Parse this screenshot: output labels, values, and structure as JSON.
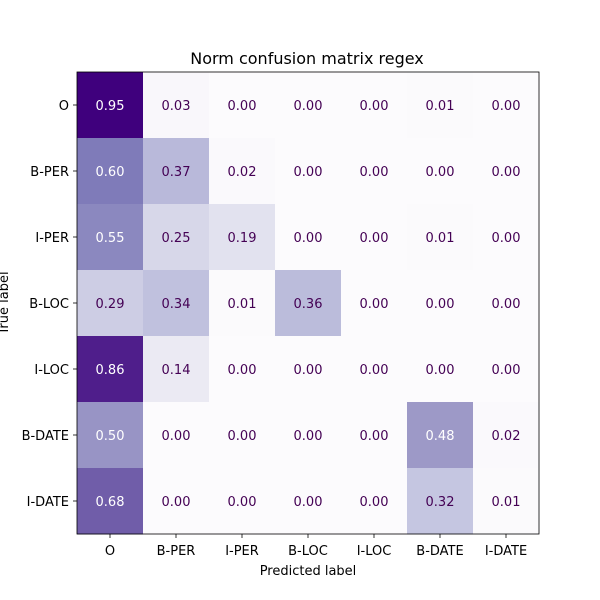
{
  "chart_data": {
    "type": "heatmap",
    "title": "Norm confusion matrix regex",
    "xlabel": "Predicted label",
    "ylabel": "True label",
    "x_categories": [
      "O",
      "B-PER",
      "I-PER",
      "B-LOC",
      "I-LOC",
      "B-DATE",
      "I-DATE"
    ],
    "y_categories": [
      "O",
      "B-PER",
      "I-PER",
      "B-LOC",
      "I-LOC",
      "B-DATE",
      "I-DATE"
    ],
    "values": [
      [
        0.95,
        0.03,
        0.0,
        0.0,
        0.0,
        0.01,
        0.0
      ],
      [
        0.6,
        0.37,
        0.02,
        0.0,
        0.0,
        0.0,
        0.0
      ],
      [
        0.55,
        0.25,
        0.19,
        0.0,
        0.0,
        0.01,
        0.0
      ],
      [
        0.29,
        0.34,
        0.01,
        0.36,
        0.0,
        0.0,
        0.0
      ],
      [
        0.86,
        0.14,
        0.0,
        0.0,
        0.0,
        0.0,
        0.0
      ],
      [
        0.5,
        0.0,
        0.0,
        0.0,
        0.0,
        0.48,
        0.02
      ],
      [
        0.68,
        0.0,
        0.0,
        0.0,
        0.0,
        0.32,
        0.01
      ]
    ],
    "value_format": "0.00",
    "colormap": "Purples",
    "color_range": [
      0,
      0.95
    ],
    "grid": false,
    "colors": {
      "low_cell": "#fcfbfd",
      "high_cell": "#3f007d",
      "dark_text": "#440154",
      "light_text": "#ffffff",
      "axis": "#000000"
    }
  }
}
